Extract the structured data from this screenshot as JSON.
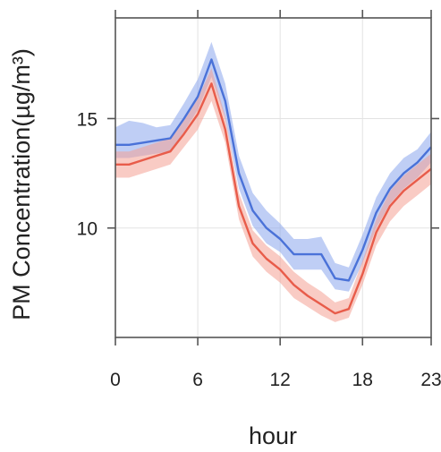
{
  "chart_data": {
    "type": "line",
    "title": "",
    "xlabel": "hour",
    "ylabel": "PM Concentration(µg/m³)",
    "xlim": [
      0,
      23
    ],
    "ylim": [
      5,
      19.6
    ],
    "x_ticks": [
      0,
      6,
      12,
      18,
      23
    ],
    "y_ticks": [
      10,
      15
    ],
    "grid": true,
    "legend": "none",
    "x": [
      0,
      1,
      2,
      3,
      4,
      5,
      6,
      7,
      8,
      9,
      10,
      11,
      12,
      13,
      14,
      15,
      16,
      17,
      18,
      19,
      20,
      21,
      22,
      23
    ],
    "series": [
      {
        "color": "#4a72d8",
        "band_color": "#8aa6ec",
        "values": [
          13.8,
          13.8,
          13.9,
          14.0,
          14.1,
          15.0,
          16.0,
          17.7,
          15.8,
          12.5,
          10.8,
          10.0,
          9.5,
          8.8,
          8.8,
          8.8,
          7.7,
          7.6,
          9.0,
          10.7,
          11.8,
          12.5,
          13.0,
          13.7
        ],
        "band_lower": [
          13.2,
          13.2,
          13.3,
          13.4,
          13.5,
          14.4,
          15.4,
          16.9,
          15.0,
          11.8,
          10.1,
          9.3,
          8.9,
          8.1,
          8.1,
          8.1,
          7.2,
          7.1,
          8.4,
          10.0,
          11.1,
          11.8,
          12.3,
          13.0
        ],
        "band_upper": [
          14.6,
          14.9,
          14.8,
          14.6,
          14.7,
          15.7,
          16.8,
          18.5,
          16.6,
          13.3,
          11.6,
          10.8,
          10.2,
          9.5,
          9.5,
          9.6,
          8.4,
          8.2,
          9.7,
          11.4,
          12.5,
          13.2,
          13.6,
          14.4
        ]
      },
      {
        "color": "#e85c4a",
        "band_color": "#f4a094",
        "values": [
          12.9,
          12.9,
          13.1,
          13.3,
          13.5,
          14.3,
          15.2,
          16.6,
          14.5,
          11.0,
          9.3,
          8.6,
          8.1,
          7.4,
          6.9,
          6.5,
          6.1,
          6.3,
          7.9,
          9.8,
          11.0,
          11.7,
          12.2,
          12.7
        ],
        "band_lower": [
          12.3,
          12.3,
          12.5,
          12.7,
          12.9,
          13.7,
          14.5,
          15.8,
          13.9,
          10.4,
          8.7,
          8.0,
          7.5,
          6.8,
          6.4,
          6.0,
          5.7,
          5.9,
          7.4,
          9.2,
          10.3,
          11.0,
          11.5,
          12.0
        ],
        "band_upper": [
          13.5,
          13.5,
          13.7,
          13.9,
          14.1,
          14.9,
          15.9,
          17.3,
          15.1,
          11.6,
          9.9,
          9.2,
          8.7,
          8.0,
          7.5,
          7.1,
          6.6,
          6.8,
          8.5,
          10.4,
          11.7,
          12.4,
          12.9,
          13.4
        ]
      }
    ]
  }
}
